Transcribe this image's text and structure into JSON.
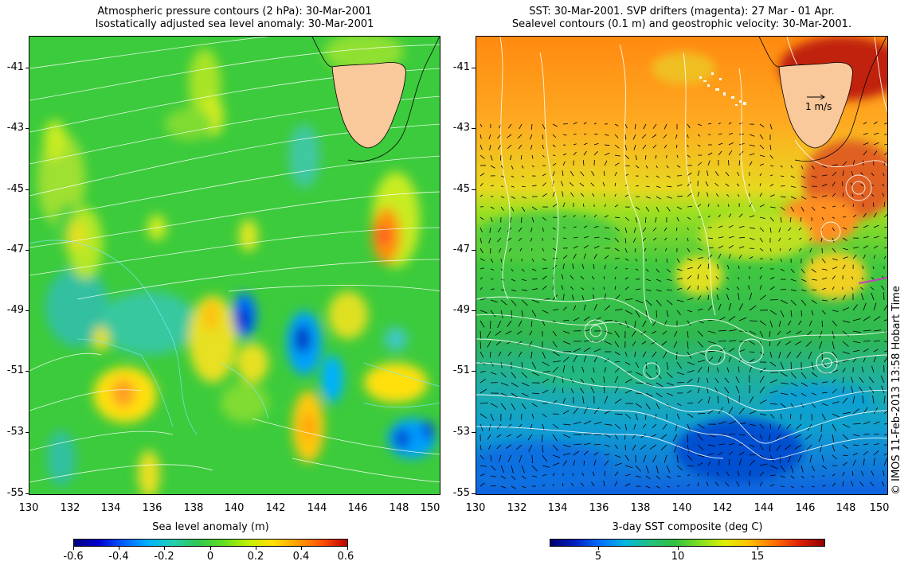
{
  "left_panel": {
    "title_line1": "Atmospheric pressure contours (2 hPa): 30-Mar-2001",
    "title_line2": "Isostatically adjusted sea level anomaly: 30-Mar-2001",
    "y_ticks": [
      "-41",
      "-43",
      "-45",
      "-47",
      "-49",
      "-51",
      "-53",
      "-55"
    ],
    "x_ticks": [
      "130",
      "132",
      "134",
      "136",
      "138",
      "140",
      "142",
      "144",
      "146",
      "148",
      "150"
    ],
    "colorbar": {
      "label": "Sea level anomaly (m)",
      "ticks": [
        "-0.6",
        "-0.4",
        "-0.2",
        "0",
        "0.2",
        "0.4",
        "0.6"
      ]
    }
  },
  "right_panel": {
    "title_line1": "SST: 30-Mar-2001. SVP drifters (magenta): 27 Mar - 01 Apr.",
    "title_line2": "Sealevel contours (0.1 m) and geostrophic velocity: 30-Mar-2001.",
    "y_ticks": [
      "-41",
      "-43",
      "-45",
      "-47",
      "-49",
      "-51",
      "-53",
      "-55"
    ],
    "x_ticks": [
      "130",
      "132",
      "134",
      "136",
      "138",
      "140",
      "142",
      "144",
      "146",
      "148",
      "150"
    ],
    "velocity_scale_label": "1 m/s",
    "colorbar": {
      "label": "3-day SST composite (deg C)",
      "ticks": [
        "5",
        "10",
        "15"
      ]
    }
  },
  "credit": "© IMOS 11-Feb-2013 13:58 Hobart Time",
  "colors": {
    "land": "#f9c89b",
    "coastline": "#000000",
    "contour": "#ffffff",
    "drifter": "#c040c0"
  }
}
